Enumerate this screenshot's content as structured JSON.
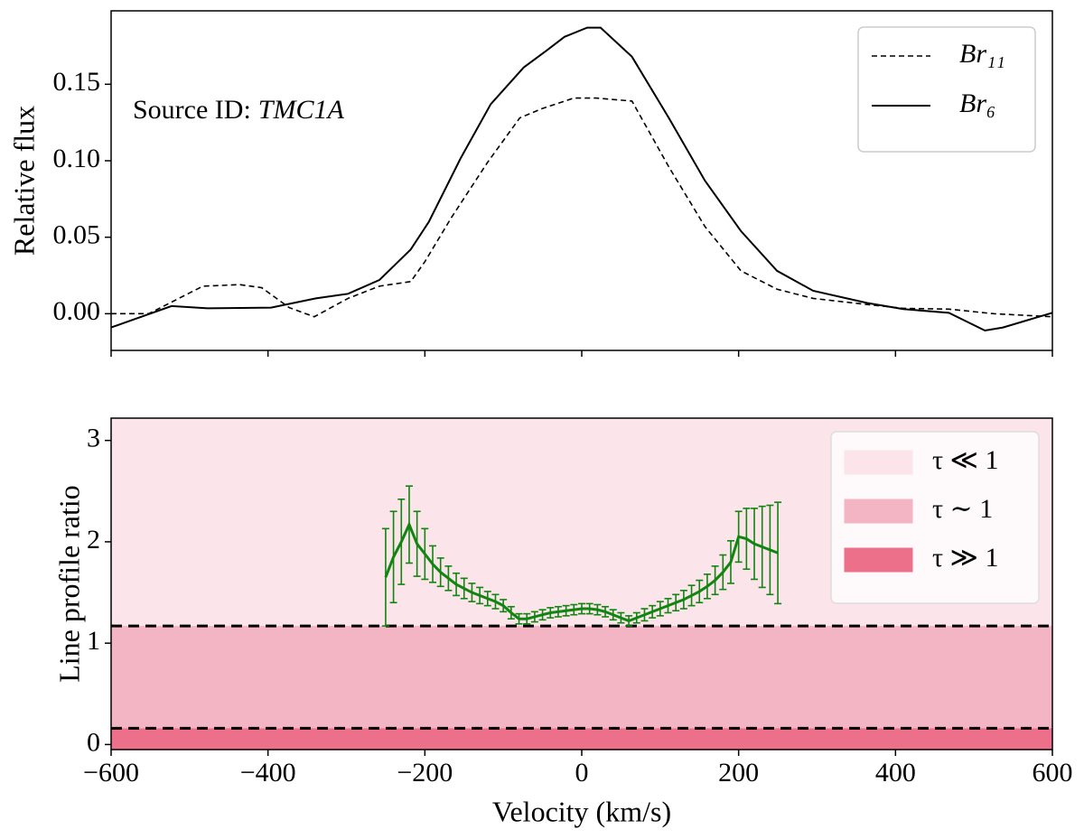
{
  "chart_data": [
    {
      "type": "line",
      "ylabel": "Relative flux",
      "annotation": [
        "Source ID:",
        "TMC1A"
      ],
      "xlim": [
        -600,
        600
      ],
      "ylim": [
        -0.024,
        0.198
      ],
      "yticks": [
        {
          "value": 0,
          "label": "0.00"
        },
        0.05,
        {
          "value": 0.1,
          "label": "0.10"
        },
        0.15
      ],
      "legend": "upper right",
      "series": [
        {
          "name": "Br₁₁",
          "color": "#000000",
          "linestyle": "dashed",
          "x": [
            -600,
            -552,
            -483,
            -436,
            -408,
            -373,
            -341,
            -298,
            -258,
            -218,
            -200,
            -166,
            -120,
            -79,
            -51,
            -10,
            18,
            64,
            111,
            157,
            203,
            249,
            295,
            364,
            410,
            468,
            525,
            600
          ],
          "values": [
            0,
            0,
            0.018,
            0.019,
            0.017,
            0.004,
            -0.002,
            0.01,
            0.018,
            0.021,
            0.034,
            0.063,
            0.099,
            0.128,
            0.134,
            0.141,
            0.141,
            0.139,
            0.096,
            0.057,
            0.028,
            0.016,
            0.01,
            0.006,
            0.0035,
            0.003,
            0,
            -0.002
          ]
        },
        {
          "name": "Br₆",
          "color": "#000000",
          "linestyle": "solid",
          "x": [
            -600,
            -523,
            -477,
            -396,
            -339,
            -298,
            -258,
            -218,
            -195,
            -154,
            -116,
            -74,
            -45,
            -22,
            7,
            24,
            64,
            111,
            157,
            203,
            249,
            295,
            364,
            410,
            468,
            514,
            537,
            600
          ],
          "values": [
            -0.009,
            0.005,
            0.0035,
            0.004,
            0.01,
            0.013,
            0.022,
            0.042,
            0.06,
            0.102,
            0.137,
            0.161,
            0.172,
            0.181,
            0.187,
            0.187,
            0.168,
            0.128,
            0.087,
            0.054,
            0.028,
            0.015,
            0.007,
            0.003,
            0.0006,
            -0.011,
            -0.009,
            0.0006
          ]
        }
      ]
    },
    {
      "type": "errorbar",
      "xlabel": "Velocity (km/s)",
      "ylabel": "Line profile ratio",
      "xlim": [
        -600,
        600
      ],
      "xticks": [
        {
          "value": -600,
          "label": "−600"
        },
        {
          "value": -400,
          "label": "−400"
        },
        {
          "value": -200,
          "label": "−200"
        },
        0,
        200,
        400,
        600
      ],
      "ylim": [
        -0.05,
        3.22
      ],
      "yticks": [
        0,
        1,
        2,
        3
      ],
      "legend": "upper right",
      "bands": [
        {
          "name": "τ ≪ 1",
          "color": "#fbe4ea",
          "ymin": 1.17,
          "ymax": 3.22
        },
        {
          "name": "τ ∼ 1",
          "color": "#f3b5c3",
          "ymin": 0.16,
          "ymax": 1.17
        },
        {
          "name": "τ ≫ 1",
          "color": "#ec7089",
          "ymin": -0.05,
          "ymax": 0.16
        }
      ],
      "hlines": [
        1.17,
        0.16
      ],
      "series": [
        {
          "color": "#108510",
          "x": [
            -250,
            -240,
            -230,
            -220,
            -210,
            -200,
            -190,
            -180,
            -170,
            -160,
            -150,
            -140,
            -130,
            -120,
            -110,
            -100,
            -90,
            -80,
            -70,
            -60,
            -50,
            -40,
            -30,
            -20,
            -10,
            0,
            10,
            20,
            30,
            40,
            50,
            60,
            70,
            80,
            90,
            100,
            110,
            120,
            130,
            140,
            150,
            160,
            170,
            180,
            190,
            200,
            210,
            220,
            230,
            240,
            250
          ],
          "values": [
            1.65,
            1.85,
            2.0,
            2.17,
            1.98,
            1.88,
            1.78,
            1.7,
            1.64,
            1.58,
            1.54,
            1.5,
            1.47,
            1.44,
            1.41,
            1.37,
            1.3,
            1.24,
            1.24,
            1.26,
            1.28,
            1.3,
            1.31,
            1.32,
            1.33,
            1.34,
            1.34,
            1.33,
            1.31,
            1.28,
            1.25,
            1.22,
            1.25,
            1.28,
            1.31,
            1.34,
            1.37,
            1.4,
            1.43,
            1.47,
            1.51,
            1.56,
            1.62,
            1.7,
            1.8,
            2.05,
            2.03,
            1.98,
            1.95,
            1.92,
            1.89
          ],
          "errors": [
            0.48,
            0.45,
            0.42,
            0.38,
            0.32,
            0.25,
            0.18,
            0.14,
            0.12,
            0.11,
            0.1,
            0.09,
            0.08,
            0.07,
            0.07,
            0.06,
            0.06,
            0.05,
            0.05,
            0.05,
            0.05,
            0.05,
            0.05,
            0.05,
            0.05,
            0.05,
            0.05,
            0.05,
            0.05,
            0.05,
            0.05,
            0.05,
            0.05,
            0.06,
            0.06,
            0.07,
            0.07,
            0.08,
            0.09,
            0.1,
            0.11,
            0.12,
            0.14,
            0.17,
            0.21,
            0.25,
            0.3,
            0.35,
            0.4,
            0.44,
            0.5
          ]
        }
      ]
    }
  ]
}
